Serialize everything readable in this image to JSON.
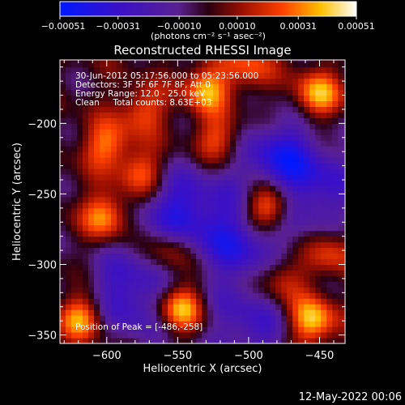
{
  "chart_data": {
    "type": "heatmap",
    "title": "Reconstructed RHESSI Image",
    "xlabel": "Heliocentric X (arcsec)",
    "ylabel": "Heliocentric Y (arcsec)",
    "xlim": [
      -633,
      -432
    ],
    "ylim": [
      -356,
      -155
    ],
    "x_ticks": [
      -600,
      -550,
      -500,
      -450
    ],
    "y_ticks": [
      -350,
      -300,
      -250,
      -200
    ],
    "x_tick_labels": [
      "−600",
      "−550",
      "−500",
      "−450"
    ],
    "y_tick_labels": [
      "−350",
      "−300",
      "−250",
      "−200"
    ],
    "colorbar": {
      "range": [
        -0.00051,
        0.00051
      ],
      "ticks": [
        -0.00051,
        -0.00031,
        -0.0001,
        0.0001,
        0.00031,
        0.00051
      ],
      "tick_labels": [
        "−0.00051",
        "−0.00031",
        "−0.00010",
        "0.00010",
        "0.00031",
        "0.00051"
      ],
      "unit_label": "(photons cm⁻² s⁻¹ asec⁻²)",
      "colormap": "blue-purple-red-yellow-white"
    },
    "annotations": [
      "30-Jun-2012 05:17:56.000 to 05:23:56.000",
      "Detectors: 3F 5F 6F 7F 8F, Att 0",
      "Energy Range: 12.0 - 25.0 keV",
      "Clean     Total counts: 8.63E+03"
    ],
    "peak_label": "Position of Peak = [-486,-258]",
    "peak": [
      -486,
      -258
    ],
    "sources": [
      {
        "x": -486,
        "y": -258,
        "intensity": 1.0
      },
      {
        "x": -548,
        "y": -330,
        "intensity": 0.85
      },
      {
        "x": -455,
        "y": -340,
        "intensity": 0.85
      },
      {
        "x": -617,
        "y": -337,
        "intensity": 0.8
      },
      {
        "x": -452,
        "y": -180,
        "intensity": 0.75
      },
      {
        "x": -530,
        "y": -175,
        "intensity": 0.7
      },
      {
        "x": -600,
        "y": -265,
        "intensity": 0.7
      },
      {
        "x": -575,
        "y": -235,
        "intensity": 0.6
      },
      {
        "x": -600,
        "y": -215,
        "intensity": 0.6
      },
      {
        "x": -555,
        "y": -290,
        "intensity": 0.55
      },
      {
        "x": -520,
        "y": -210,
        "intensity": 0.55
      },
      {
        "x": -477,
        "y": -310,
        "intensity": 0.55
      },
      {
        "x": -440,
        "y": -290,
        "intensity": 0.5
      },
      {
        "x": -500,
        "y": -160,
        "intensity": 0.5
      },
      {
        "x": -575,
        "y": -190,
        "intensity": 0.5
      }
    ],
    "negative_regions": [
      {
        "x": -548,
        "y": -262,
        "intensity": -0.7
      },
      {
        "x": -505,
        "y": -285,
        "intensity": -0.6
      },
      {
        "x": -478,
        "y": -225,
        "intensity": -0.7
      },
      {
        "x": -585,
        "y": -322,
        "intensity": -0.65
      },
      {
        "x": -500,
        "y": -345,
        "intensity": -0.5
      },
      {
        "x": -450,
        "y": -250,
        "intensity": -0.45
      }
    ]
  },
  "footer": {
    "timestamp": "12-May-2022 00:06"
  }
}
